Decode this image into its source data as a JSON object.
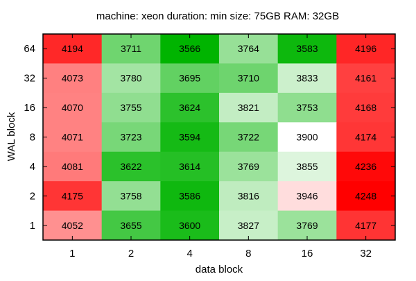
{
  "chart_data": {
    "type": "heatmap",
    "title": "machine: xeon  duration: min  size: 75GB  RAM: 32GB",
    "xlabel": "data block",
    "ylabel": "WAL block",
    "x_categories": [
      "1",
      "2",
      "4",
      "8",
      "16",
      "32"
    ],
    "y_categories": [
      "64",
      "32",
      "16",
      "8",
      "4",
      "2",
      "1"
    ],
    "values": [
      [
        4194,
        3711,
        3566,
        3764,
        3583,
        4196
      ],
      [
        4073,
        3780,
        3695,
        3710,
        3833,
        4161
      ],
      [
        4070,
        3755,
        3624,
        3821,
        3753,
        4168
      ],
      [
        4071,
        3723,
        3594,
        3722,
        3900,
        4174
      ],
      [
        4081,
        3622,
        3614,
        3769,
        3855,
        4236
      ],
      [
        4175,
        3758,
        3586,
        3816,
        3946,
        4248
      ],
      [
        4052,
        3655,
        3600,
        3827,
        3769,
        4177
      ]
    ],
    "color_scale": {
      "low_color": "#00b400",
      "mid_color": "#ffffff",
      "high_color": "#ff0000",
      "low_value": 3566,
      "mid_value": 3900,
      "high_value": 4248
    },
    "grid": false,
    "legend": "none"
  }
}
